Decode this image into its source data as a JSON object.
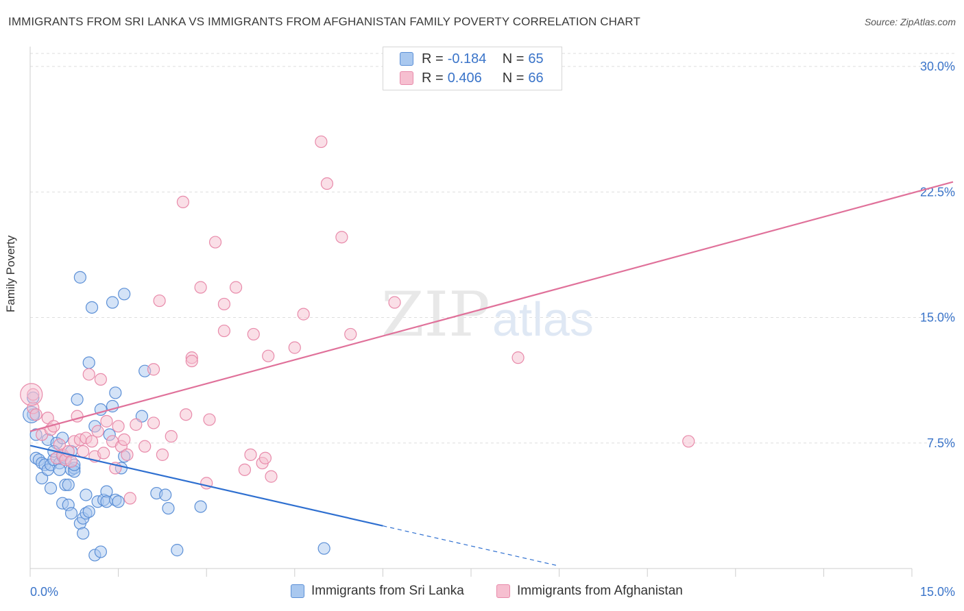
{
  "header": {
    "title": "IMMIGRANTS FROM SRI LANKA VS IMMIGRANTS FROM AFGHANISTAN FAMILY POVERTY CORRELATION CHART",
    "source": "Source: ZipAtlas.com"
  },
  "watermark": {
    "zip": "ZIP",
    "atlas": "atlas"
  },
  "legend": {
    "r_label": "R =",
    "n_label": "N =",
    "series1": {
      "r": "-0.184",
      "n": "65"
    },
    "series2": {
      "r": "0.406",
      "n": "66"
    }
  },
  "colors": {
    "blue_fill": "#a9c8ef",
    "blue_stroke": "#5b8fd6",
    "blue_line": "#2e6fd0",
    "pink_fill": "#f6bfd0",
    "pink_stroke": "#e88aaa",
    "pink_line": "#e0719a",
    "tick_text": "#3a74c9",
    "grid": "#dddddd"
  },
  "chart_data": {
    "type": "scatter",
    "title": "IMMIGRANTS FROM SRI LANKA VS IMMIGRANTS FROM AFGHANISTAN FAMILY POVERTY CORRELATION CHART",
    "xlabel": "",
    "ylabel": "Family Poverty",
    "xlim": [
      0,
      15
    ],
    "ylim": [
      0,
      31
    ],
    "x_tick_labels": [
      "0.0%",
      "15.0%"
    ],
    "y_ticks": [
      7.5,
      15.0,
      22.5,
      30.0
    ],
    "y_tick_labels": [
      "7.5%",
      "15.0%",
      "22.5%",
      "30.0%"
    ],
    "grid": true,
    "series": [
      {
        "name": "Immigrants from Sri Lanka",
        "color": "#5b8fd6",
        "R": -0.184,
        "N": 65,
        "trend": {
          "x": [
            0,
            6.0
          ],
          "y": [
            7.35,
            2.55
          ],
          "dashed_to": [
            9.0,
            0.15
          ]
        },
        "points": [
          [
            0.05,
            10.2
          ],
          [
            0.05,
            9.2
          ],
          [
            0.1,
            8.0
          ],
          [
            0.1,
            6.6
          ],
          [
            0.15,
            6.5
          ],
          [
            0.2,
            6.3
          ],
          [
            0.2,
            5.4
          ],
          [
            0.25,
            6.2
          ],
          [
            0.3,
            7.7
          ],
          [
            0.3,
            5.9
          ],
          [
            0.35,
            6.2
          ],
          [
            0.35,
            4.8
          ],
          [
            0.4,
            6.5
          ],
          [
            0.45,
            7.5
          ],
          [
            0.4,
            7.0
          ],
          [
            0.5,
            6.3
          ],
          [
            0.5,
            5.9
          ],
          [
            0.55,
            6.7
          ],
          [
            0.55,
            7.8
          ],
          [
            0.55,
            3.9
          ],
          [
            0.6,
            6.6
          ],
          [
            0.6,
            5.0
          ],
          [
            0.65,
            5.0
          ],
          [
            0.65,
            3.8
          ],
          [
            0.7,
            7.0
          ],
          [
            0.7,
            3.3
          ],
          [
            0.7,
            5.9
          ],
          [
            0.75,
            6.0
          ],
          [
            0.75,
            5.8
          ],
          [
            0.75,
            6.2
          ],
          [
            0.8,
            10.1
          ],
          [
            0.85,
            17.4
          ],
          [
            0.85,
            2.7
          ],
          [
            0.9,
            3.0
          ],
          [
            0.9,
            2.1
          ],
          [
            0.95,
            4.4
          ],
          [
            0.95,
            3.3
          ],
          [
            1.0,
            12.3
          ],
          [
            1.0,
            3.4
          ],
          [
            1.05,
            15.6
          ],
          [
            1.1,
            8.5
          ],
          [
            1.1,
            0.8
          ],
          [
            1.15,
            4.0
          ],
          [
            1.2,
            9.5
          ],
          [
            1.2,
            1.0
          ],
          [
            1.25,
            4.1
          ],
          [
            1.3,
            4.6
          ],
          [
            1.3,
            4.0
          ],
          [
            1.35,
            8.0
          ],
          [
            1.4,
            15.9
          ],
          [
            1.4,
            9.7
          ],
          [
            1.45,
            10.5
          ],
          [
            1.45,
            4.1
          ],
          [
            1.5,
            4.0
          ],
          [
            1.55,
            6.0
          ],
          [
            1.6,
            16.4
          ],
          [
            1.6,
            6.7
          ],
          [
            1.9,
            9.1
          ],
          [
            1.95,
            11.8
          ],
          [
            2.15,
            4.5
          ],
          [
            2.3,
            4.4
          ],
          [
            2.35,
            3.6
          ],
          [
            2.5,
            1.1
          ],
          [
            2.9,
            3.7
          ],
          [
            5.0,
            1.2
          ]
        ]
      },
      {
        "name": "Immigrants from Afghanistan",
        "color": "#e88aaa",
        "R": 0.406,
        "N": 66,
        "trend": {
          "x": [
            0,
            15.7
          ],
          "y": [
            8.2,
            23.1
          ]
        },
        "points": [
          [
            0.05,
            10.4
          ],
          [
            0.05,
            9.6
          ],
          [
            0.1,
            9.2
          ],
          [
            0.2,
            8.0
          ],
          [
            0.3,
            9.0
          ],
          [
            0.35,
            8.3
          ],
          [
            0.4,
            8.5
          ],
          [
            0.45,
            6.6
          ],
          [
            0.5,
            7.4
          ],
          [
            0.55,
            6.8
          ],
          [
            0.6,
            6.5
          ],
          [
            0.65,
            7.0
          ],
          [
            0.7,
            6.4
          ],
          [
            0.75,
            7.6
          ],
          [
            0.8,
            9.1
          ],
          [
            0.85,
            7.7
          ],
          [
            0.9,
            7.0
          ],
          [
            0.95,
            7.8
          ],
          [
            1.0,
            11.6
          ],
          [
            1.05,
            7.6
          ],
          [
            1.1,
            6.7
          ],
          [
            1.15,
            8.2
          ],
          [
            1.2,
            11.3
          ],
          [
            1.25,
            6.9
          ],
          [
            1.3,
            8.8
          ],
          [
            1.4,
            7.6
          ],
          [
            1.45,
            6.0
          ],
          [
            1.5,
            8.5
          ],
          [
            1.55,
            7.3
          ],
          [
            1.6,
            7.7
          ],
          [
            1.65,
            6.8
          ],
          [
            1.7,
            4.2
          ],
          [
            1.8,
            8.6
          ],
          [
            1.95,
            7.3
          ],
          [
            2.1,
            8.7
          ],
          [
            2.1,
            11.9
          ],
          [
            2.2,
            16.0
          ],
          [
            2.25,
            6.8
          ],
          [
            2.4,
            7.9
          ],
          [
            2.6,
            21.9
          ],
          [
            2.65,
            9.2
          ],
          [
            2.75,
            12.6
          ],
          [
            2.75,
            12.4
          ],
          [
            2.9,
            16.8
          ],
          [
            3.0,
            5.1
          ],
          [
            3.05,
            8.9
          ],
          [
            3.15,
            19.5
          ],
          [
            3.3,
            15.8
          ],
          [
            3.3,
            14.2
          ],
          [
            3.5,
            16.8
          ],
          [
            3.65,
            5.9
          ],
          [
            3.75,
            6.8
          ],
          [
            3.8,
            14.0
          ],
          [
            3.95,
            6.3
          ],
          [
            4.0,
            6.6
          ],
          [
            4.05,
            12.7
          ],
          [
            4.1,
            5.5
          ],
          [
            4.5,
            13.2
          ],
          [
            4.65,
            15.2
          ],
          [
            4.95,
            25.5
          ],
          [
            5.05,
            23.0
          ],
          [
            5.3,
            19.8
          ],
          [
            5.45,
            14.0
          ],
          [
            6.2,
            15.9
          ],
          [
            8.3,
            12.6
          ],
          [
            11.2,
            7.6
          ]
        ]
      }
    ]
  },
  "bottom_legend": {
    "series1": "Immigrants from Sri Lanka",
    "series2": "Immigrants from Afghanistan"
  }
}
